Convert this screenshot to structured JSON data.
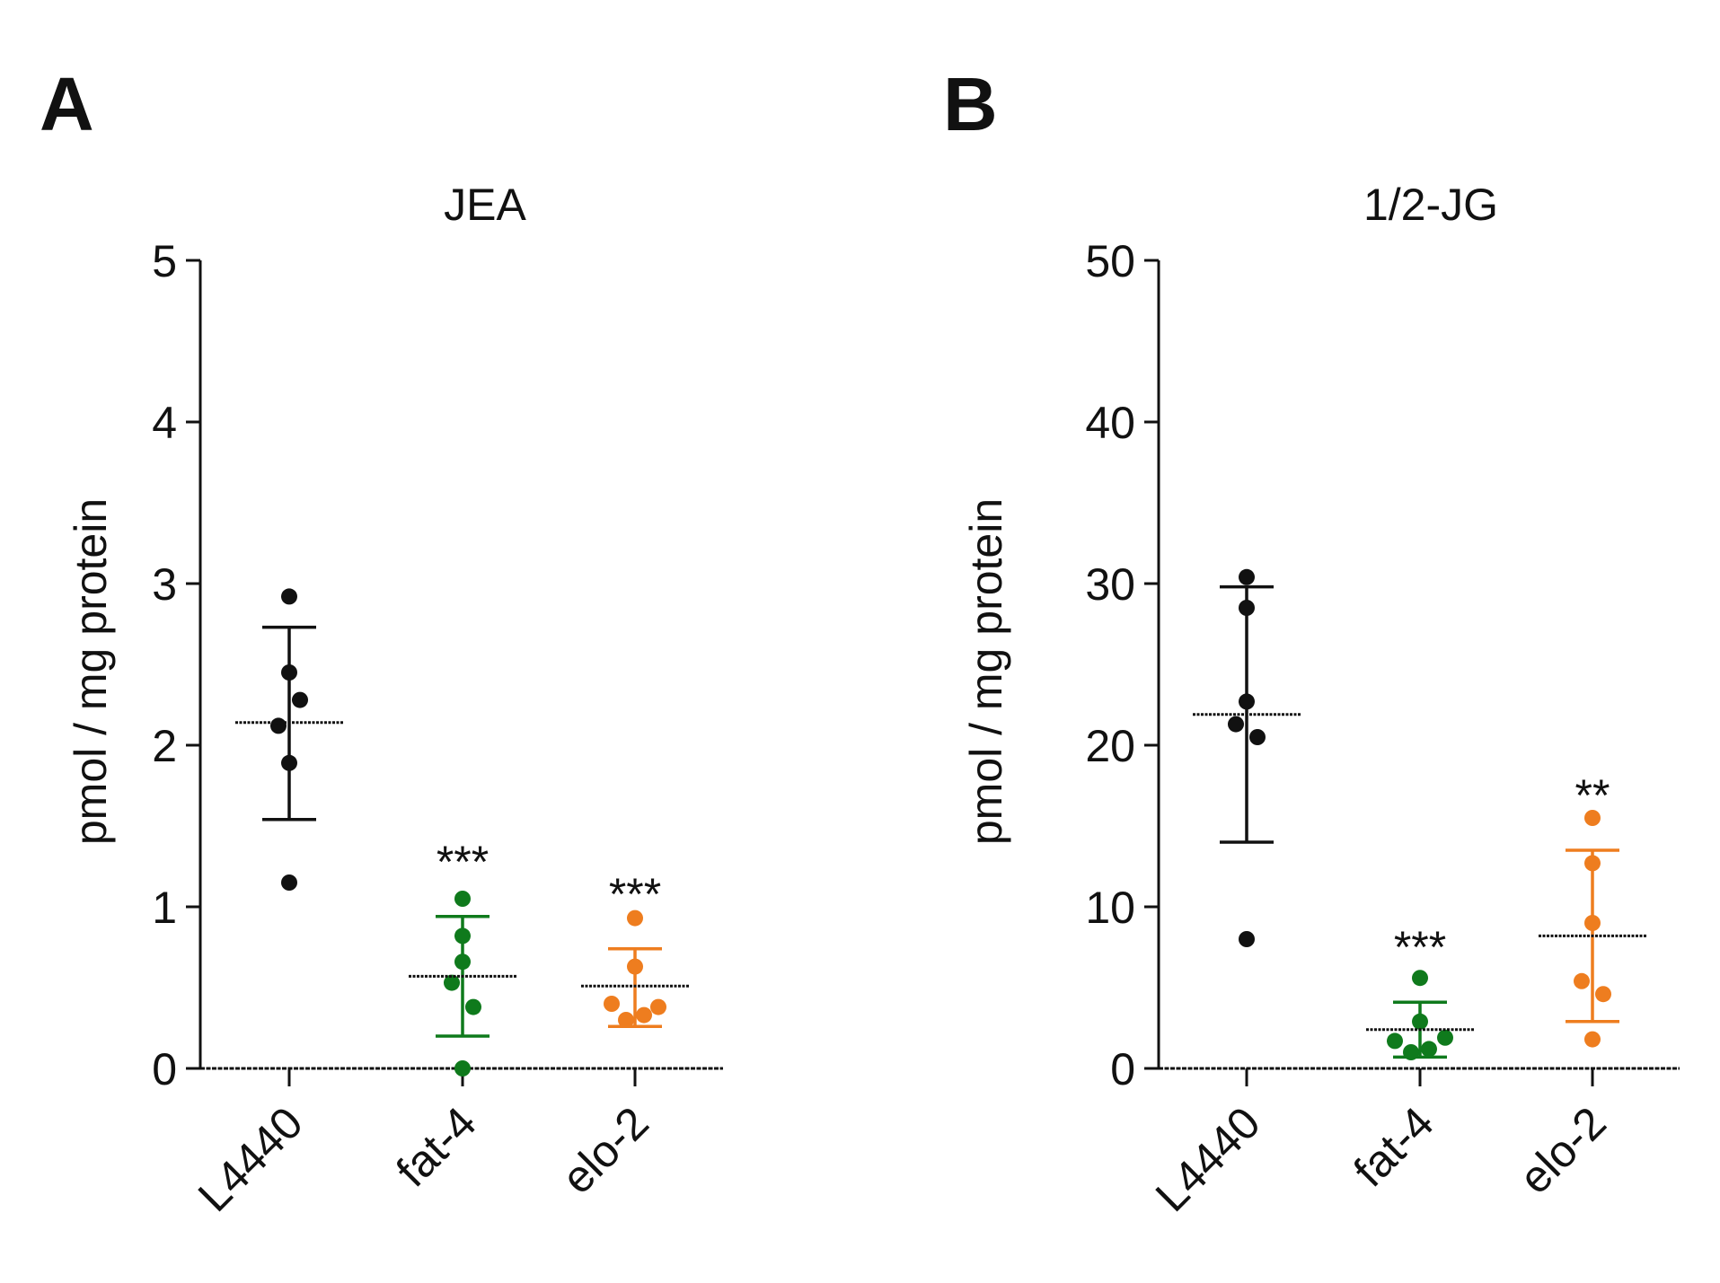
{
  "colors": {
    "L4440": "#111111",
    "fat-4": "#0f7a1c",
    "elo-2": "#ee7d1f",
    "mean": "#111111"
  },
  "chart_data": [
    {
      "panel": "A",
      "type": "scatter",
      "title": "JEA",
      "ylabel": "pmol / mg protein",
      "xlabel": "",
      "ylim": [
        0,
        5
      ],
      "yticks": [
        0,
        1,
        2,
        3,
        4,
        5
      ],
      "categories": [
        "L4440",
        "fat-4",
        "elo-2"
      ],
      "series": [
        {
          "name": "L4440",
          "points": [
            2.92,
            2.45,
            2.28,
            2.12,
            1.89,
            1.15
          ],
          "jitter": [
            0,
            0,
            0.6,
            -0.6,
            0,
            0
          ],
          "mean": 2.14,
          "sd_upper": 2.73,
          "sd_lower": 1.54,
          "significance": ""
        },
        {
          "name": "fat-4",
          "points": [
            1.05,
            0.82,
            0.66,
            0.53,
            0.38,
            0.0
          ],
          "jitter": [
            0,
            0,
            0,
            -0.6,
            0.6,
            0
          ],
          "mean": 0.57,
          "sd_upper": 0.94,
          "sd_lower": 0.2,
          "significance": "***"
        },
        {
          "name": "elo-2",
          "points": [
            0.93,
            0.63,
            0.4,
            0.38,
            0.33,
            0.3
          ],
          "jitter": [
            0,
            0,
            -1.3,
            1.3,
            0.5,
            -0.5
          ],
          "mean": 0.51,
          "sd_upper": 0.74,
          "sd_lower": 0.26,
          "significance": "***"
        }
      ]
    },
    {
      "panel": "B",
      "type": "scatter",
      "title": "1/2-JG",
      "ylabel": "pmol / mg protein",
      "xlabel": "",
      "ylim": [
        0,
        50
      ],
      "yticks": [
        0,
        10,
        20,
        30,
        40,
        50
      ],
      "categories": [
        "L4440",
        "fat-4",
        "elo-2"
      ],
      "series": [
        {
          "name": "L4440",
          "points": [
            30.4,
            28.5,
            22.7,
            21.3,
            20.5,
            8.0
          ],
          "jitter": [
            0,
            0,
            0,
            -0.6,
            0.6,
            0
          ],
          "mean": 21.9,
          "sd_upper": 29.8,
          "sd_lower": 14.0,
          "significance": ""
        },
        {
          "name": "fat-4",
          "points": [
            5.6,
            2.9,
            1.9,
            1.7,
            1.2,
            1.0
          ],
          "jitter": [
            0,
            0,
            1.4,
            -1.4,
            0.5,
            -0.5
          ],
          "mean": 2.4,
          "sd_upper": 4.1,
          "sd_lower": 0.7,
          "significance": "***"
        },
        {
          "name": "elo-2",
          "points": [
            15.5,
            12.7,
            9.0,
            5.4,
            4.6,
            1.8
          ],
          "jitter": [
            0,
            0,
            0,
            -0.6,
            0.6,
            0
          ],
          "mean": 8.2,
          "sd_upper": 13.5,
          "sd_lower": 2.9,
          "significance": "**"
        }
      ]
    }
  ]
}
